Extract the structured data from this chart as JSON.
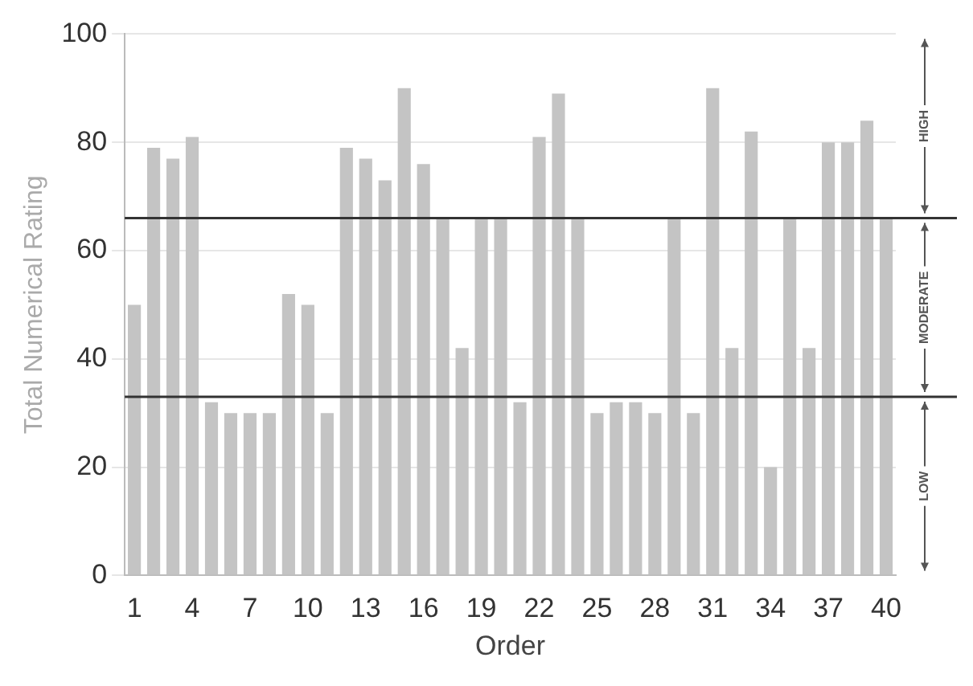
{
  "chart_data": {
    "type": "bar",
    "xlabel": "Order",
    "ylabel": "Total Numerical Rating",
    "categories": [
      "1",
      null,
      null,
      "4",
      null,
      null,
      "7",
      null,
      null,
      "10",
      null,
      null,
      "13",
      null,
      null,
      "16",
      null,
      null,
      "19",
      null,
      null,
      "22",
      null,
      null,
      "25",
      null,
      null,
      "28",
      null,
      null,
      "31",
      null,
      null,
      "34",
      null,
      null,
      "37",
      null,
      null,
      "40"
    ],
    "values": [
      50,
      79,
      77,
      81,
      32,
      30,
      30,
      30,
      52,
      50,
      30,
      79,
      77,
      73,
      90,
      76,
      66,
      42,
      66,
      66,
      32,
      81,
      89,
      66,
      30,
      32,
      32,
      30,
      66,
      30,
      90,
      42,
      82,
      20,
      66,
      42,
      80,
      80,
      84,
      66
    ],
    "color": "#c4c4c4",
    "ylim": [
      0,
      100
    ],
    "yticks": [
      0,
      20,
      40,
      60,
      80,
      100
    ],
    "grid": "y",
    "legend": false,
    "ref_lines": [
      {
        "axis": "y",
        "value": 66,
        "color": "#333333"
      },
      {
        "axis": "y",
        "value": 33,
        "color": "#333333"
      }
    ],
    "annotations": [
      "LOW",
      "MODERATE",
      "HIGH"
    ]
  }
}
